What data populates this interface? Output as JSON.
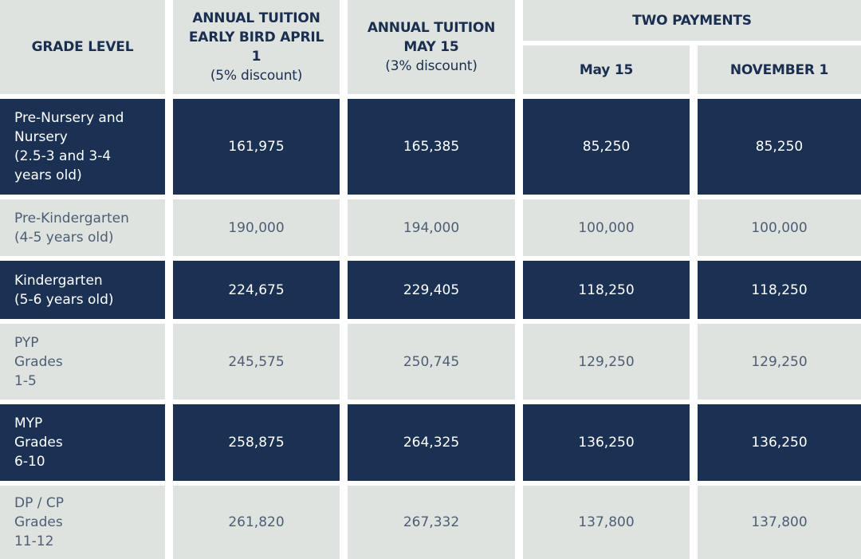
{
  "headers": {
    "grade_level": "GRADE LEVEL",
    "early_bird": "ANNUAL TUITION\nEARLY BIRD APRIL\n1",
    "early_bird_discount": "(5% discount)",
    "may15": "ANNUAL TUITION\nMAY 15",
    "may15_discount": "(3% discount)",
    "two_payments": "TWO PAYMENTS",
    "payment1": "May 15",
    "payment2": "NOVEMBER 1"
  },
  "rows": [
    {
      "grade": "Pre-Nursery and\nNursery\n(2.5-3 and 3-4\nyears old)",
      "early_bird": "161,975",
      "may15": "165,385",
      "payment1": "85,250",
      "payment2": "85,250"
    },
    {
      "grade": "Pre-Kindergarten\n(4-5 years old)",
      "early_bird": "190,000",
      "may15": "194,000",
      "payment1": "100,000",
      "payment2": "100,000"
    },
    {
      "grade": "Kindergarten\n(5-6 years old)",
      "early_bird": "224,675",
      "may15": "229,405",
      "payment1": "118,250",
      "payment2": "118,250"
    },
    {
      "grade": "PYP\nGrades\n1-5",
      "early_bird": "245,575",
      "may15": "250,745",
      "payment1": "129,250",
      "payment2": "129,250"
    },
    {
      "grade": "MYP\nGrades\n6-10",
      "early_bird": "258,875",
      "may15": "264,325",
      "payment1": "136,250",
      "payment2": "136,250"
    },
    {
      "grade": "DP / CP\nGrades\n11-12",
      "early_bird": "261,820",
      "may15": "267,332",
      "payment1": "137,800",
      "payment2": "137,800"
    }
  ]
}
